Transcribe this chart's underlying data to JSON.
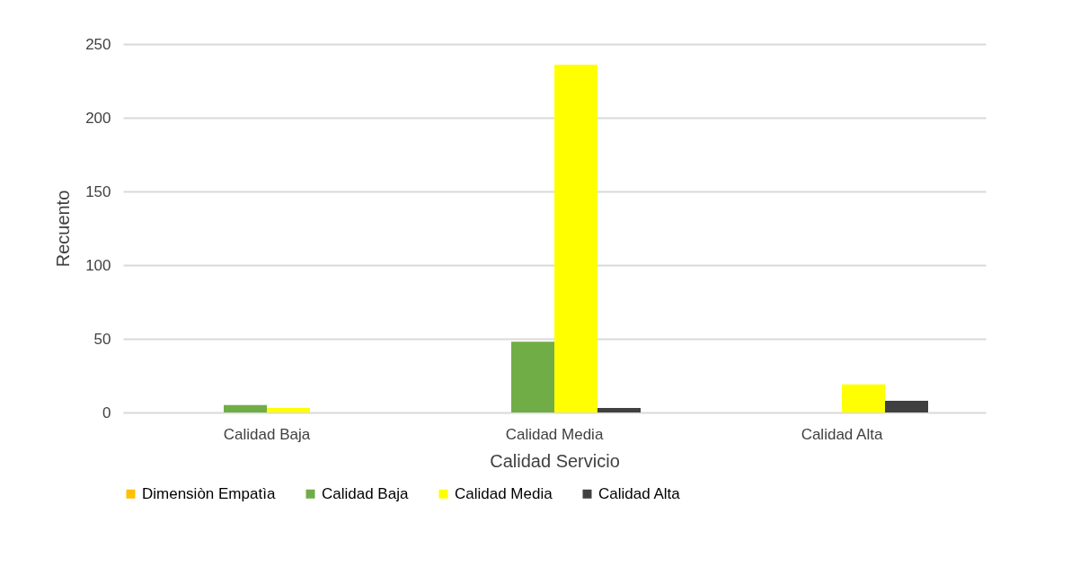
{
  "chart_data": {
    "type": "bar",
    "xlabel": "Calidad Servicio",
    "ylabel": "Recuento",
    "categories": [
      "Calidad Baja",
      "Calidad Media",
      "Calidad Alta"
    ],
    "series": [
      {
        "name": "Dimensiòn Empatìa",
        "color": "#ffc000",
        "values": [
          null,
          null,
          null
        ]
      },
      {
        "name": "Calidad Baja",
        "color": "#70ad47",
        "values": [
          5,
          48,
          null
        ]
      },
      {
        "name": "Calidad Media",
        "color": "#ffff00",
        "values": [
          3,
          236,
          19
        ]
      },
      {
        "name": "Calidad Alta",
        "color": "#404040",
        "values": [
          null,
          3,
          8
        ]
      }
    ],
    "ylim": [
      0,
      250
    ],
    "yticks": [
      0,
      50,
      100,
      150,
      200,
      250
    ],
    "grid": "y",
    "legend": "bottom"
  }
}
